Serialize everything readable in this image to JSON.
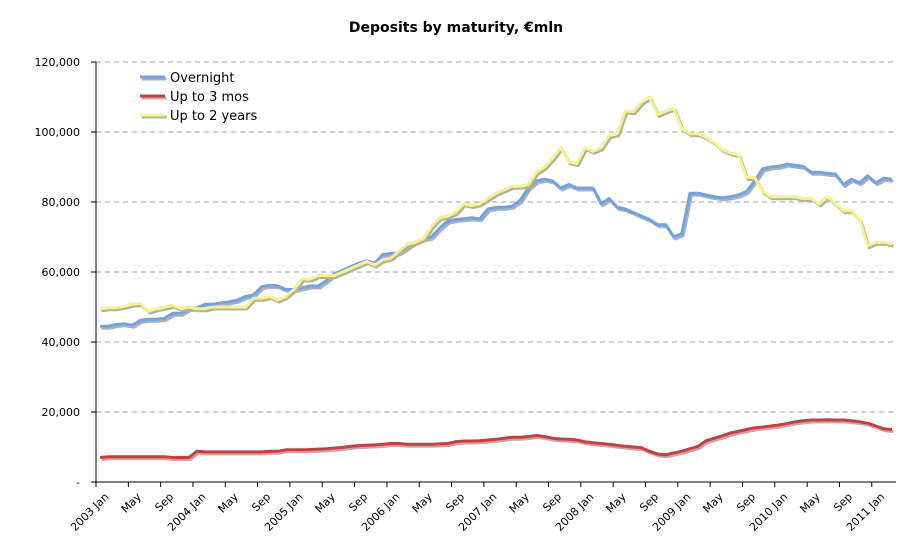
{
  "chart_data": {
    "type": "line",
    "title": "Deposits by maturity, €mln",
    "xlabel": "",
    "ylabel": "",
    "ylim": [
      0,
      120000
    ],
    "yticks": [
      0,
      20000,
      40000,
      60000,
      80000,
      100000,
      120000
    ],
    "ytick_labels": [
      "-",
      "20,000",
      "40,000",
      "60,000",
      "80,000",
      "100,000",
      "120,000"
    ],
    "x_start": "2003 Jan",
    "num_months": 99,
    "xtick_labels": [
      {
        "m": 0,
        "label": "2003 Jan"
      },
      {
        "m": 4,
        "label": "May"
      },
      {
        "m": 8,
        "label": "Sep"
      },
      {
        "m": 12,
        "label": "2004 Jan"
      },
      {
        "m": 16,
        "label": "May"
      },
      {
        "m": 20,
        "label": "Sep"
      },
      {
        "m": 24,
        "label": "2005 Jan"
      },
      {
        "m": 28,
        "label": "May"
      },
      {
        "m": 32,
        "label": "Sep"
      },
      {
        "m": 36,
        "label": "2006 Jan"
      },
      {
        "m": 40,
        "label": "May"
      },
      {
        "m": 44,
        "label": "Sep"
      },
      {
        "m": 48,
        "label": "2007 Jan"
      },
      {
        "m": 52,
        "label": "May"
      },
      {
        "m": 56,
        "label": "Sep"
      },
      {
        "m": 60,
        "label": "2008 Jan"
      },
      {
        "m": 64,
        "label": "May"
      },
      {
        "m": 68,
        "label": "Sep"
      },
      {
        "m": 72,
        "label": "2009 Jan"
      },
      {
        "m": 76,
        "label": "May"
      },
      {
        "m": 80,
        "label": "Sep"
      },
      {
        "m": 84,
        "label": "2010 Jan"
      },
      {
        "m": 88,
        "label": "May"
      },
      {
        "m": 92,
        "label": "Sep"
      },
      {
        "m": 96,
        "label": "2011 Jan"
      }
    ],
    "series": [
      {
        "name": "Overnight",
        "color": "#6fa3e6",
        "values": [
          44500,
          44500,
          45000,
          45200,
          44800,
          46200,
          46500,
          46500,
          46800,
          48200,
          48200,
          49500,
          49800,
          50800,
          50800,
          51200,
          51500,
          52000,
          53000,
          53500,
          55800,
          56200,
          56000,
          55000,
          55000,
          55500,
          56000,
          56000,
          57500,
          59500,
          60500,
          61500,
          62500,
          63200,
          62500,
          65000,
          65300,
          65500,
          67000,
          68500,
          69500,
          70000,
          72500,
          74500,
          75000,
          75200,
          75500,
          75200,
          78000,
          78500,
          78500,
          78800,
          80500,
          84000,
          86000,
          86500,
          86000,
          84000,
          85000,
          84000,
          84000,
          84000,
          79500,
          81000,
          78500,
          78000,
          77000,
          76000,
          75000,
          73500,
          73500,
          70000,
          71000,
          82500,
          82500,
          82000,
          81500,
          81200,
          81500,
          82000,
          83000,
          86000,
          89500,
          90000,
          90200,
          90800,
          90500,
          90200,
          88500,
          88500,
          88200,
          88000,
          85000,
          86500,
          85500,
          87500,
          85500,
          86800,
          86500
        ]
      },
      {
        "name": "Up to 3 mos",
        "color": "#d43a3c",
        "values": [
          7000,
          7200,
          7200,
          7200,
          7200,
          7200,
          7200,
          7200,
          7200,
          7000,
          7000,
          7000,
          8800,
          8600,
          8600,
          8600,
          8600,
          8600,
          8600,
          8600,
          8600,
          8800,
          8800,
          9200,
          9200,
          9200,
          9300,
          9400,
          9500,
          9700,
          9900,
          10200,
          10400,
          10500,
          10600,
          10800,
          11000,
          11000,
          10800,
          10800,
          10800,
          10800,
          10900,
          11000,
          11500,
          11700,
          11700,
          11800,
          12000,
          12200,
          12500,
          12800,
          12800,
          13000,
          13300,
          13000,
          12500,
          12300,
          12200,
          12000,
          11500,
          11200,
          11000,
          10800,
          10500,
          10200,
          10000,
          9800,
          8800,
          8000,
          7800,
          8300,
          8800,
          9500,
          10200,
          11800,
          12500,
          13200,
          14000,
          14500,
          15000,
          15500,
          15700,
          16000,
          16300,
          16700,
          17200,
          17500,
          17700,
          17700,
          17800,
          17700,
          17700,
          17500,
          17200,
          16800,
          16000,
          15200,
          15000
        ]
      },
      {
        "name": "Up to 2 years",
        "color": "#f7f28a",
        "values": [
          49500,
          49800,
          49800,
          50200,
          50800,
          51000,
          48800,
          49500,
          50000,
          50500,
          49500,
          50000,
          49500,
          49500,
          50000,
          50000,
          50000,
          50000,
          50000,
          52500,
          52500,
          53000,
          52000,
          53000,
          55000,
          58000,
          58000,
          59000,
          59000,
          59000,
          60000,
          61000,
          62000,
          63000,
          62000,
          63500,
          64000,
          66000,
          68000,
          68500,
          69500,
          73000,
          75500,
          76000,
          77000,
          79500,
          79000,
          79500,
          81000,
          82500,
          83500,
          84500,
          84500,
          85000,
          88500,
          90000,
          92500,
          95500,
          91500,
          91000,
          95500,
          94500,
          95500,
          99000,
          99500,
          106000,
          105800,
          108500,
          110000,
          105000,
          106000,
          106800,
          101000,
          99500,
          99500,
          98500,
          97000,
          95000,
          94000,
          93500,
          87000,
          87000,
          83000,
          81500,
          81500,
          81500,
          81500,
          81000,
          81000,
          79500,
          81500,
          79500,
          77500,
          77500,
          75000,
          67500,
          68500,
          68500,
          68000
        ]
      }
    ]
  }
}
